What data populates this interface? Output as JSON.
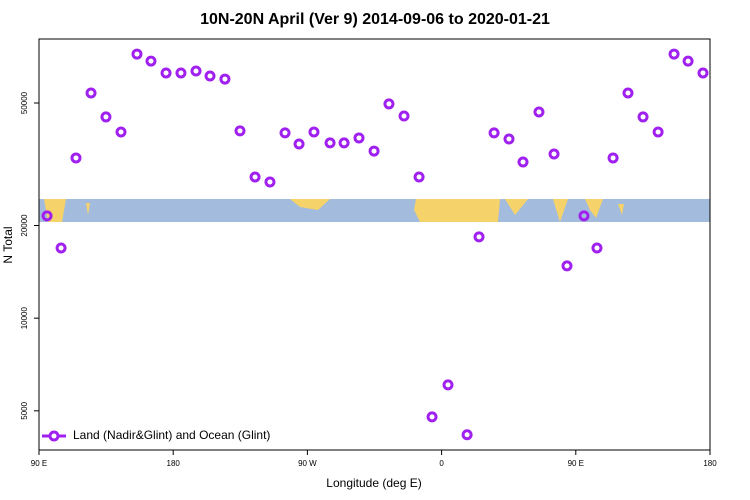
{
  "chart_data": {
    "type": "scatter",
    "log_y": true,
    "title": "10N-20N April (Ver 9)   2014-09-06 to 2020-01-21",
    "x_label": "Longitude (deg E)",
    "y_label": "N Total",
    "x": [
      95.4,
      104.8,
      114.8,
      124.9,
      134.9,
      145,
      155.7,
      165.1,
      175.2,
      185.2,
      195.3,
      204.7,
      214.7,
      224.8,
      234.9,
      244.9,
      255,
      264.4,
      274.4,
      285.2,
      294.6,
      304.6,
      314.7,
      324.7,
      334.8,
      344.9,
      353.6,
      364.3,
      377.1,
      385.1,
      395.2,
      405.2,
      414.6,
      425.3,
      435.4,
      444.1,
      455.5,
      464.2,
      475,
      485,
      495.1,
      505.2,
      515.9,
      525.3,
      535.3
    ],
    "series": [
      {
        "name": "Land (Nadir&Glint) and Ocean (Glint)",
        "color": "#a020f0",
        "values": [
          21500,
          16900,
          33150,
          53900,
          45050,
          40250,
          72100,
          68400,
          62600,
          62600,
          63500,
          61200,
          59800,
          40600,
          28750,
          27700,
          40000,
          36800,
          40250,
          37100,
          37100,
          38500,
          34900,
          49650,
          45350,
          28750,
          4780,
          6070,
          4180,
          18370,
          40000,
          38200,
          32150,
          46750,
          34150,
          14790,
          21500,
          16900,
          33150,
          53900,
          45050,
          40250,
          72100,
          68400,
          62600
        ]
      }
    ],
    "xlim": [
      90,
      540
    ],
    "xticks": [
      {
        "value": 90,
        "label": "90 E"
      },
      180,
      {
        "value": 270,
        "label": "90 W"
      },
      {
        "value": 360,
        "label": "0"
      },
      {
        "value": 450,
        "label": "90 E"
      },
      {
        "value": 540,
        "label": "180"
      }
    ],
    "ylim": [
      3730,
      80700
    ],
    "yticks": [
      5000,
      10000,
      20000,
      50000
    ],
    "legend": "bottom-left"
  }
}
